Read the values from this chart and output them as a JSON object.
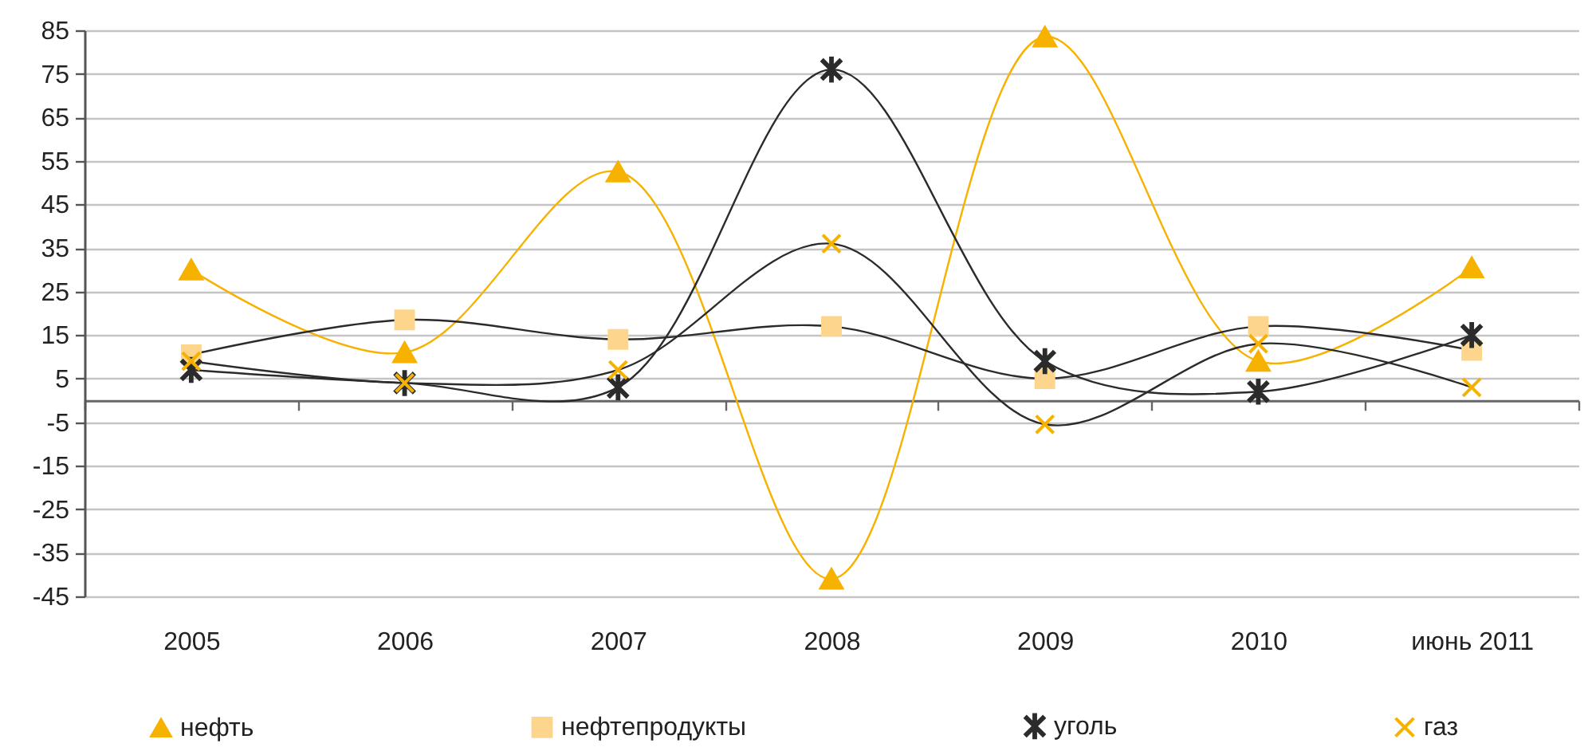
{
  "chart_data": {
    "type": "line",
    "categories": [
      "2005",
      "2006",
      "2007",
      "2008",
      "2009",
      "2010",
      "июнь 2011"
    ],
    "series": [
      {
        "name": "нефть",
        "color": "#f7b200",
        "marker": "triangle",
        "values": [
          30,
          11,
          52.5,
          -41,
          83.5,
          9,
          30.5
        ]
      },
      {
        "name": "нефтепродукты",
        "color": "#2b2b2b",
        "marker": "square",
        "colors": [
          "#fdd58c",
          "#fdd58c",
          "#fdd58c",
          "#fdd58c",
          "#fdd58c",
          "#fdd58c",
          "#fdd58c"
        ],
        "values": [
          10.5,
          18.5,
          14,
          17,
          5,
          17,
          11.5
        ]
      },
      {
        "name": "уголь",
        "color": "#2b2b2b",
        "marker": "star",
        "values": [
          7,
          4,
          3,
          76,
          9,
          2,
          15
        ]
      },
      {
        "name": "газ",
        "color": "#2b2b2b",
        "marker": "cross",
        "colors": [
          "#f7b200",
          "#f7b200",
          "#f7b200",
          "#f7b200",
          "#f7b200",
          "#f7b200",
          "#f7b200"
        ],
        "values": [
          9,
          4,
          7,
          36,
          -5.5,
          13,
          3
        ]
      }
    ],
    "ylim": [
      -45,
      85
    ],
    "yticks": [
      -45,
      -35,
      -25,
      -15,
      -5,
      5,
      15,
      25,
      35,
      45,
      55,
      65,
      75,
      85
    ],
    "grid": "y",
    "legend": "bottom",
    "line_style": "solid"
  }
}
